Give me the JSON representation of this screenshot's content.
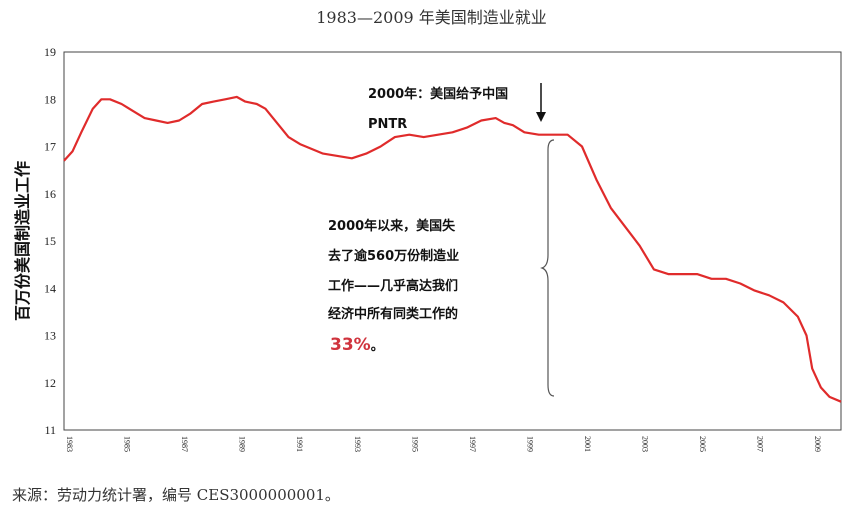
{
  "title": "1983—2009 年美国制造业就业",
  "source": "来源：劳动力统计署，编号 CES3000000001。",
  "chart_data": {
    "type": "line",
    "ylabel": "百万份美国制造业工作",
    "xlim": [
      1983,
      2010
    ],
    "ylim": [
      11,
      19
    ],
    "y_ticks": [
      11,
      12,
      13,
      14,
      15,
      16,
      17,
      18,
      19
    ],
    "x_ticks": [
      1983,
      1985,
      1987,
      1989,
      1991,
      1993,
      1995,
      1997,
      1999,
      2001,
      2003,
      2005,
      2007,
      2009
    ],
    "line_color": "#e02b2b",
    "series": [
      {
        "x": [
          1983.0,
          1983.3,
          1983.6,
          1984.0,
          1984.3,
          1984.6,
          1985.0,
          1985.4,
          1985.8,
          1986.2,
          1986.6,
          1987.0,
          1987.4,
          1987.8,
          1988.2,
          1988.6,
          1989.0,
          1989.3,
          1989.7,
          1990.0,
          1990.4,
          1990.8,
          1991.2,
          1991.6,
          1992.0,
          1992.5,
          1993.0,
          1993.5,
          1994.0,
          1994.5,
          1995.0,
          1995.5,
          1996.0,
          1996.5,
          1997.0,
          1997.5,
          1998.0,
          1998.3,
          1998.6,
          1999.0,
          1999.5,
          2000.0,
          2000.5,
          2001.0,
          2001.5,
          2002.0,
          2002.5,
          2003.0,
          2003.5,
          2004.0,
          2004.5,
          2005.0,
          2005.5,
          2006.0,
          2006.5,
          2007.0,
          2007.5,
          2008.0,
          2008.5,
          2008.8,
          2009.0,
          2009.3,
          2009.6,
          2010.0
        ],
        "y": [
          16.7,
          16.9,
          17.3,
          17.8,
          18.0,
          18.0,
          17.9,
          17.75,
          17.6,
          17.55,
          17.5,
          17.55,
          17.7,
          17.9,
          17.95,
          18.0,
          18.05,
          17.95,
          17.9,
          17.8,
          17.5,
          17.2,
          17.05,
          16.95,
          16.85,
          16.8,
          16.75,
          16.85,
          17.0,
          17.2,
          17.25,
          17.2,
          17.25,
          17.3,
          17.4,
          17.55,
          17.6,
          17.5,
          17.45,
          17.3,
          17.25,
          17.25,
          17.25,
          17.0,
          16.3,
          15.7,
          15.3,
          14.9,
          14.4,
          14.3,
          14.3,
          14.3,
          14.2,
          14.2,
          14.1,
          13.95,
          13.85,
          13.7,
          13.4,
          13.0,
          12.3,
          11.9,
          11.7,
          11.6
        ]
      }
    ],
    "annotations": {
      "pntr_line1": "2000年：美国给予中国",
      "pntr_line2": "PNTR",
      "loss_line1": "2000年以来，美国失",
      "loss_line2": "去了逾560万份制造业",
      "loss_line3": "工作——几乎高达我们",
      "loss_line4": "经济中所有同类工作的",
      "loss_highlight": "33%",
      "loss_suffix": "。"
    }
  }
}
